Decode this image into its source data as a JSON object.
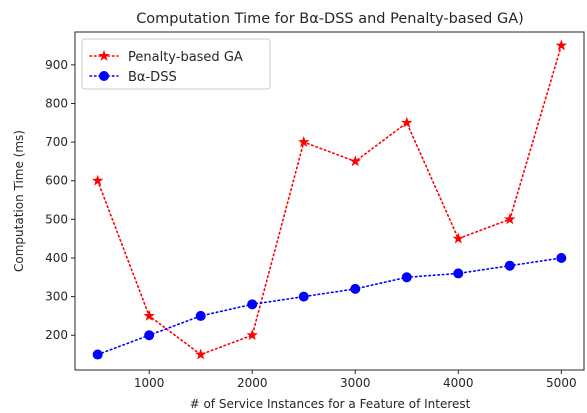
{
  "chart_data": {
    "type": "line",
    "title": "Computation Time for Bα-DSS and Penalty-based GA)",
    "xlabel": "# of Service Instances for a Feature of Interest",
    "ylabel": "Computation Time (ms)",
    "x": [
      500,
      1000,
      1500,
      2000,
      2500,
      3000,
      3500,
      4000,
      4500,
      5000
    ],
    "xlim": [
      280,
      5220
    ],
    "ylim": [
      110,
      985
    ],
    "xticks": [
      1000,
      2000,
      3000,
      4000,
      5000
    ],
    "yticks": [
      200,
      300,
      400,
      500,
      600,
      700,
      800,
      900
    ],
    "grid": false,
    "legend_position": "upper-left",
    "series": [
      {
        "name": "Penalty-based GA",
        "color": "#ff0000",
        "marker": "star",
        "linestyle": "dotted",
        "values": [
          600,
          250,
          150,
          200,
          700,
          650,
          750,
          450,
          500,
          950
        ]
      },
      {
        "name": "Bα-DSS",
        "color": "#0000ff",
        "marker": "circle",
        "linestyle": "dotted",
        "values": [
          150,
          200,
          250,
          280,
          300,
          320,
          350,
          360,
          380,
          400
        ]
      }
    ]
  }
}
